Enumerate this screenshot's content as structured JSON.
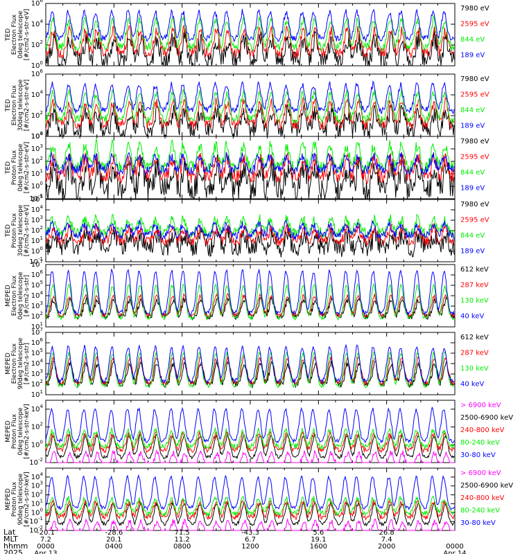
{
  "colors": {
    "black": "#000000",
    "red": "#ff0000",
    "green": "#00ee00",
    "blue": "#0000ff",
    "magenta": "#ff00ff",
    "frame": "#000000"
  },
  "chart_data": [
    {
      "type": "line",
      "ylabel": [
        "TED",
        "Electron Flux",
        "0deg telescope",
        "[#/cm2-s-str-eV]"
      ],
      "yscale": "log",
      "ylim_exp": [
        0,
        6
      ],
      "ytick_exps": [
        0,
        2,
        4,
        6
      ],
      "legend": [
        {
          "label": "7980 eV",
          "color": "black"
        },
        {
          "label": "2595 eV",
          "color": "red"
        },
        {
          "label": "844 eV",
          "color": "green"
        },
        {
          "label": "189 eV",
          "color": "blue"
        }
      ],
      "series_levels_exp": [
        {
          "color": "black",
          "base": 0.5,
          "peak": 2.5,
          "noise": 0.9
        },
        {
          "color": "red",
          "base": 1.2,
          "peak": 3.4,
          "noise": 0.5
        },
        {
          "color": "green",
          "base": 1.8,
          "peak": 4.4,
          "noise": 0.4
        },
        {
          "color": "blue",
          "base": 2.6,
          "peak": 5.2,
          "noise": 0.3
        }
      ]
    },
    {
      "type": "line",
      "ylabel": [
        "TED",
        "Electron Flux",
        "30deg telescope",
        "[#/cm2-s-str-eV]"
      ],
      "yscale": "log",
      "ylim_exp": [
        0,
        6
      ],
      "ytick_exps": [
        0,
        2,
        4,
        6
      ],
      "legend": [
        {
          "label": "7980 eV",
          "color": "black"
        },
        {
          "label": "2595 eV",
          "color": "red"
        },
        {
          "label": "844 eV",
          "color": "green"
        },
        {
          "label": "189 eV",
          "color": "blue"
        }
      ],
      "series_levels_exp": [
        {
          "color": "black",
          "base": 0.5,
          "peak": 2.4,
          "noise": 0.9
        },
        {
          "color": "red",
          "base": 1.1,
          "peak": 3.3,
          "noise": 0.5
        },
        {
          "color": "green",
          "base": 1.6,
          "peak": 4.2,
          "noise": 0.4
        },
        {
          "color": "blue",
          "base": 2.5,
          "peak": 5.0,
          "noise": 0.3
        }
      ]
    },
    {
      "type": "line",
      "ylabel": [
        "TED",
        "Proton Flux",
        "0deg telescope",
        "[#/cm2-s-str-eV]"
      ],
      "yscale": "log",
      "ylim_exp": [
        -1,
        4
      ],
      "ytick_exps": [
        -1,
        0,
        1,
        2,
        3,
        4
      ],
      "legend": [
        {
          "label": "7980 eV",
          "color": "black"
        },
        {
          "label": "2595 eV",
          "color": "red"
        },
        {
          "label": "844 eV",
          "color": "green"
        },
        {
          "label": "189 eV",
          "color": "blue"
        }
      ],
      "series_levels_exp": [
        {
          "color": "black",
          "base": -0.3,
          "peak": 1.6,
          "noise": 1.0
        },
        {
          "color": "red",
          "base": 0.8,
          "peak": 2.2,
          "noise": 0.6
        },
        {
          "color": "green",
          "base": 1.5,
          "peak": 3.3,
          "noise": 0.5
        },
        {
          "color": "blue",
          "base": 1.3,
          "peak": 2.4,
          "noise": 0.4
        }
      ]
    },
    {
      "type": "line",
      "ylabel": [
        "TED",
        "Proton Flux",
        "30deg telescope",
        "[#/cm2-s-str-eV]"
      ],
      "yscale": "log",
      "ylim_exp": [
        -1,
        5
      ],
      "ytick_exps": [
        -1,
        0,
        1,
        2,
        3,
        4,
        5
      ],
      "legend": [
        {
          "label": "7980 eV",
          "color": "black"
        },
        {
          "label": "2595 eV",
          "color": "red"
        },
        {
          "label": "844 eV",
          "color": "green"
        },
        {
          "label": "189 eV",
          "color": "blue"
        }
      ],
      "series_levels_exp": [
        {
          "color": "black",
          "base": 0.3,
          "peak": 1.6,
          "noise": 0.9
        },
        {
          "color": "red",
          "base": 1.0,
          "peak": 2.2,
          "noise": 0.5
        },
        {
          "color": "green",
          "base": 1.8,
          "peak": 3.1,
          "noise": 0.5
        },
        {
          "color": "blue",
          "base": 1.5,
          "peak": 2.6,
          "noise": 0.4
        }
      ]
    },
    {
      "type": "line",
      "ylabel": [
        "MEPED",
        "Electron Flux",
        "0deg telescope",
        "[#/cm2-s-str]"
      ],
      "yscale": "log",
      "ylim_exp": [
        1,
        7
      ],
      "ytick_exps": [
        1,
        2,
        3,
        4,
        5,
        6,
        7
      ],
      "legend": [
        {
          "label": "612 keV",
          "color": "black"
        },
        {
          "label": "287 keV",
          "color": "red"
        },
        {
          "label": "130 keV",
          "color": "green"
        },
        {
          "label": "40 keV",
          "color": "blue"
        }
      ],
      "series_levels_exp": [
        {
          "color": "black",
          "base": 2.0,
          "peak": 3.6,
          "noise": 0.3
        },
        {
          "color": "red",
          "base": 2.1,
          "peak": 4.0,
          "noise": 0.2
        },
        {
          "color": "green",
          "base": 1.8,
          "peak": 5.0,
          "noise": 0.15
        },
        {
          "color": "blue",
          "base": 2.3,
          "peak": 6.4,
          "noise": 0.2
        }
      ]
    },
    {
      "type": "line",
      "ylabel": [
        "MEPED",
        "Electron Flux",
        "90deg telescope",
        "[#/cm2-s-str]"
      ],
      "yscale": "log",
      "ylim_exp": [
        1,
        7
      ],
      "ytick_exps": [
        1,
        2,
        3,
        4,
        5,
        6,
        7
      ],
      "legend": [
        {
          "label": "612 keV",
          "color": "black"
        },
        {
          "label": "287 keV",
          "color": "red"
        },
        {
          "label": "130 keV",
          "color": "green"
        },
        {
          "label": "40 keV",
          "color": "blue"
        }
      ],
      "series_levels_exp": [
        {
          "color": "black",
          "base": 2.0,
          "peak": 4.0,
          "noise": 0.3
        },
        {
          "color": "red",
          "base": 2.1,
          "peak": 4.5,
          "noise": 0.2
        },
        {
          "color": "green",
          "base": 1.8,
          "peak": 5.0,
          "noise": 0.15
        },
        {
          "color": "blue",
          "base": 2.3,
          "peak": 5.6,
          "noise": 0.2
        }
      ]
    },
    {
      "type": "line",
      "ylabel": [
        "MEPED",
        "Proton Flux",
        "0deg telescope",
        "[#/cm2-s-str-keV]"
      ],
      "yscale": "log",
      "ylim_exp": [
        -2,
        5
      ],
      "ytick_exps": [
        -2,
        0,
        2,
        4
      ],
      "legend": [
        {
          "label": "> 6900 keV",
          "color": "magenta"
        },
        {
          "label": "2500-6900 keV",
          "color": "black"
        },
        {
          "label": "240-800 keV",
          "color": "red"
        },
        {
          "label": "80-240 keV",
          "color": "green"
        },
        {
          "label": "30-80 keV",
          "color": "blue"
        }
      ],
      "series_levels_exp": [
        {
          "color": "magenta",
          "base": -2.5,
          "peak": -0.9,
          "noise": 0.3
        },
        {
          "color": "black",
          "base": -1.4,
          "peak": 1.0,
          "noise": 0.2
        },
        {
          "color": "red",
          "base": -0.6,
          "peak": 1.2,
          "noise": 0.3
        },
        {
          "color": "green",
          "base": -0.2,
          "peak": 1.6,
          "noise": 0.3
        },
        {
          "color": "blue",
          "base": 0.4,
          "peak": 4.0,
          "noise": 0.2
        }
      ]
    },
    {
      "type": "line",
      "ylabel": [
        "MEPED",
        "Proton Flux",
        "90deg telescope",
        "[#/cm2-s-str-keV]"
      ],
      "yscale": "log",
      "ylim_exp": [
        -2,
        5
      ],
      "ytick_exps": [
        -2,
        -1,
        0,
        1,
        2,
        3,
        4
      ],
      "legend": [
        {
          "label": "> 6900 keV",
          "color": "magenta"
        },
        {
          "label": "2500-6900 keV",
          "color": "black"
        },
        {
          "label": "240-800 keV",
          "color": "red"
        },
        {
          "label": "80-240 keV",
          "color": "green"
        },
        {
          "label": "30-80 keV",
          "color": "blue"
        }
      ],
      "series_levels_exp": [
        {
          "color": "magenta",
          "base": -2.5,
          "peak": -1.0,
          "noise": 0.3
        },
        {
          "color": "black",
          "base": -1.3,
          "peak": 1.0,
          "noise": 0.2
        },
        {
          "color": "red",
          "base": -0.5,
          "peak": 1.2,
          "noise": 0.3
        },
        {
          "color": "green",
          "base": -0.1,
          "peak": 1.6,
          "noise": 0.3
        },
        {
          "color": "blue",
          "base": 0.5,
          "peak": 4.0,
          "noise": 0.2
        }
      ]
    }
  ],
  "x_axis": {
    "row_labels": [
      "Lat",
      "MLT",
      "hhmm",
      "2025"
    ],
    "ticks": [
      {
        "lat": "-20.1",
        "mlt": "7.2",
        "hhmm": "0000",
        "date": "Apr 13"
      },
      {
        "lat": "-28.6",
        "mlt": "20.1",
        "hhmm": "0400",
        "date": ""
      },
      {
        "lat": "71.5",
        "mlt": "11.2",
        "hhmm": "0800",
        "date": ""
      },
      {
        "lat": "-43.3",
        "mlt": "6.7",
        "hhmm": "1200",
        "date": ""
      },
      {
        "lat": "5.6",
        "mlt": "19.1",
        "hhmm": "1600",
        "date": ""
      },
      {
        "lat": "26.8",
        "mlt": "7.4",
        "hhmm": "2000",
        "date": ""
      },
      {
        "lat": "",
        "mlt": "",
        "hhmm": "0000",
        "date": "Apr 14"
      }
    ],
    "hours_range": [
      0,
      24
    ]
  }
}
